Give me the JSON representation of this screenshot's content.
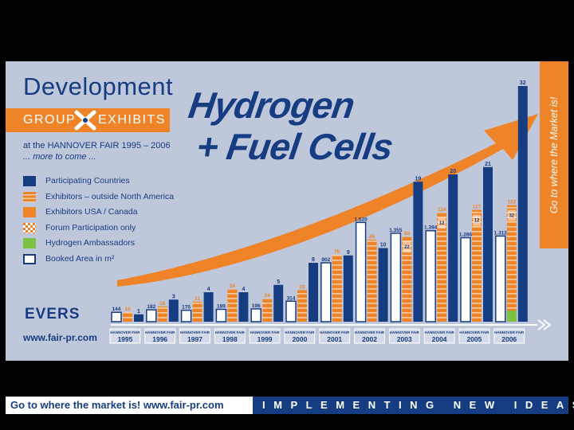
{
  "header": {
    "title": "Development",
    "group_left": "GROUP",
    "group_right": "EXHIBITS",
    "subtitle": "at the HANNOVER FAIR 1995 – 2006",
    "more": "... more to come ..."
  },
  "headline": {
    "line1": "Hydrogen",
    "line2": "+ Fuel Cells"
  },
  "side_banner": "Go to where the Market is!",
  "logo": "EVERS",
  "website": "www.fair-pr.com",
  "bottom_bar": {
    "left": "Go to where the market is!   www.fair-pr.com",
    "right": "IMPLEMENTING NEW IDEAS"
  },
  "colors": {
    "navy": "#163d82",
    "orange": "#ef8327",
    "green": "#7dc143",
    "background": "#bfc7db"
  },
  "chart_data": {
    "type": "bar",
    "fair_label": "HANNOVER FAIR",
    "categories": [
      "1995",
      "1996",
      "1997",
      "1998",
      "1999",
      "2000",
      "2001",
      "2002",
      "2003",
      "2004",
      "2005",
      "2006"
    ],
    "legend": [
      {
        "key": "booked",
        "label": "Booked Area in m²"
      },
      {
        "key": "exhibitors",
        "label": "Exhibitors – outside North America"
      },
      {
        "key": "countries",
        "label": "Participating Countries"
      },
      {
        "key": "usa",
        "label": "Exhibitors USA / Canada"
      },
      {
        "key": "forum",
        "label": "Forum Participation only"
      },
      {
        "key": "hydrogen",
        "label": "Hydrogen Ambassadors"
      }
    ],
    "legend_order": [
      "countries",
      "exhibitors",
      "usa",
      "forum",
      "hydrogen",
      "booked"
    ],
    "series": [
      {
        "key": "booked",
        "values": [
          144,
          182,
          175,
          189,
          196,
          314,
          902,
          1520,
          1355,
          1394,
          1286,
          1312
        ],
        "labels": [
          "144",
          "182",
          "175",
          "189",
          "196",
          "314",
          "902",
          "1.520",
          "1.355",
          "1.394",
          "1.286",
          "1.312"
        ]
      },
      {
        "key": "exhibitors",
        "values": [
          10,
          16,
          21,
          34,
          24,
          33,
          70,
          86,
          89,
          114,
          117,
          122
        ]
      },
      {
        "key": "countries",
        "values": [
          1,
          3,
          4,
          4,
          5,
          8,
          9,
          10,
          19,
          20,
          21,
          32
        ]
      },
      {
        "key": "usa",
        "values": [
          0,
          0,
          0,
          0,
          0,
          0,
          0,
          0,
          0,
          0,
          0,
          0
        ]
      },
      {
        "key": "forum",
        "values": [
          0,
          0,
          0,
          0,
          0,
          0,
          0,
          0,
          0,
          0,
          0,
          0
        ]
      },
      {
        "key": "hydrogen",
        "values": [
          0,
          0,
          0,
          0,
          0,
          0,
          0,
          0,
          0,
          0,
          0,
          0
        ]
      }
    ],
    "inner_labels": {
      "2003": "22",
      "2004": "12",
      "2005": "12",
      "2006": "32"
    }
  }
}
